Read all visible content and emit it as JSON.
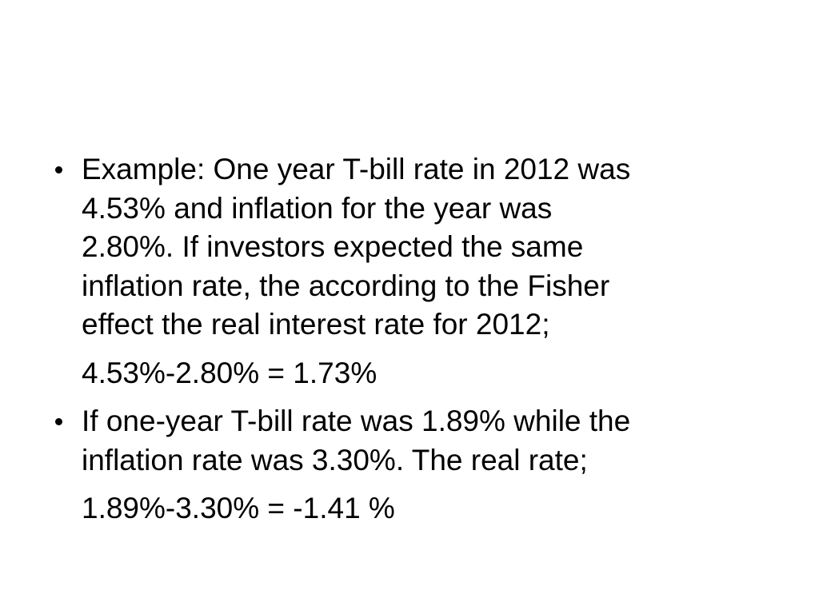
{
  "slide": {
    "items": [
      {
        "type": "bullet",
        "lines": [
          "Example: One year T-bill rate in 2012 was",
          "4.53% and inflation for the year was",
          "2.80%. If investors expected the same",
          "inflation rate, the according to the Fisher",
          "effect the real interest rate for 2012;"
        ]
      },
      {
        "type": "indent",
        "lines": [
          "4.53%-2.80% = 1.73%"
        ]
      },
      {
        "type": "bullet",
        "lines": [
          "If one-year T-bill rate was 1.89% while the",
          "inflation rate was 3.30%. The real rate;"
        ]
      },
      {
        "type": "indent",
        "lines": [
          "1.89%-3.30% = -1.41 %"
        ]
      }
    ]
  }
}
